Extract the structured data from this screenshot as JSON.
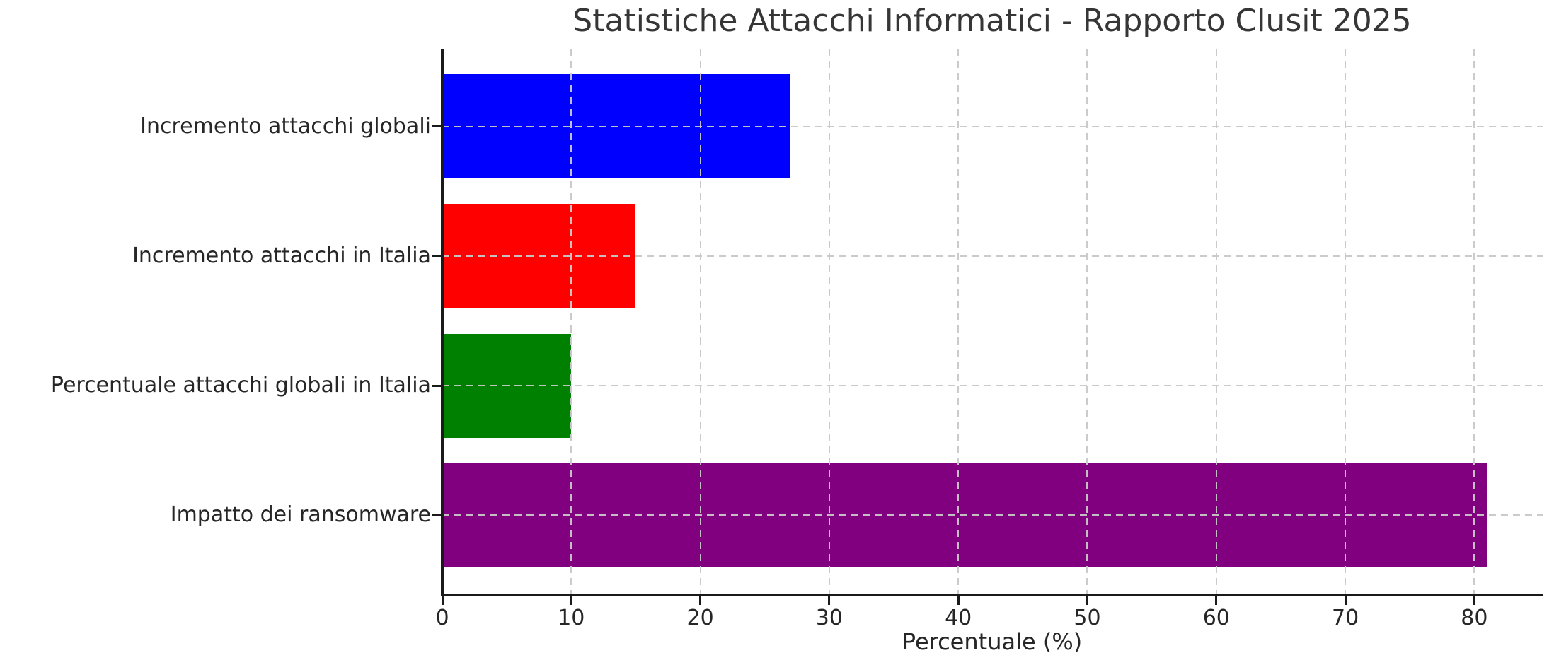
{
  "chart_data": {
    "type": "bar",
    "orientation": "horizontal",
    "title": "Statistiche Attacchi Informatici - Rapporto Clusit 2025",
    "xlabel": "Percentuale (%)",
    "categories": [
      "Incremento attacchi globali",
      "Incremento attacchi in Italia",
      "Percentuale attacchi globali in Italia",
      "Impatto dei ransomware"
    ],
    "values": [
      27,
      15,
      10,
      81
    ],
    "bar_colors": [
      "#0000ff",
      "#ff0000",
      "#008000",
      "#800080"
    ],
    "xlim": [
      0,
      85.3
    ],
    "xticks": [
      0,
      10,
      20,
      30,
      40,
      50,
      60,
      70,
      80
    ],
    "grid": true,
    "grid_style": "dashed",
    "grid_color": "#c8c8c8",
    "legend_position": "none",
    "axis_color": "#1a1a1a",
    "text_color": "#262626"
  }
}
